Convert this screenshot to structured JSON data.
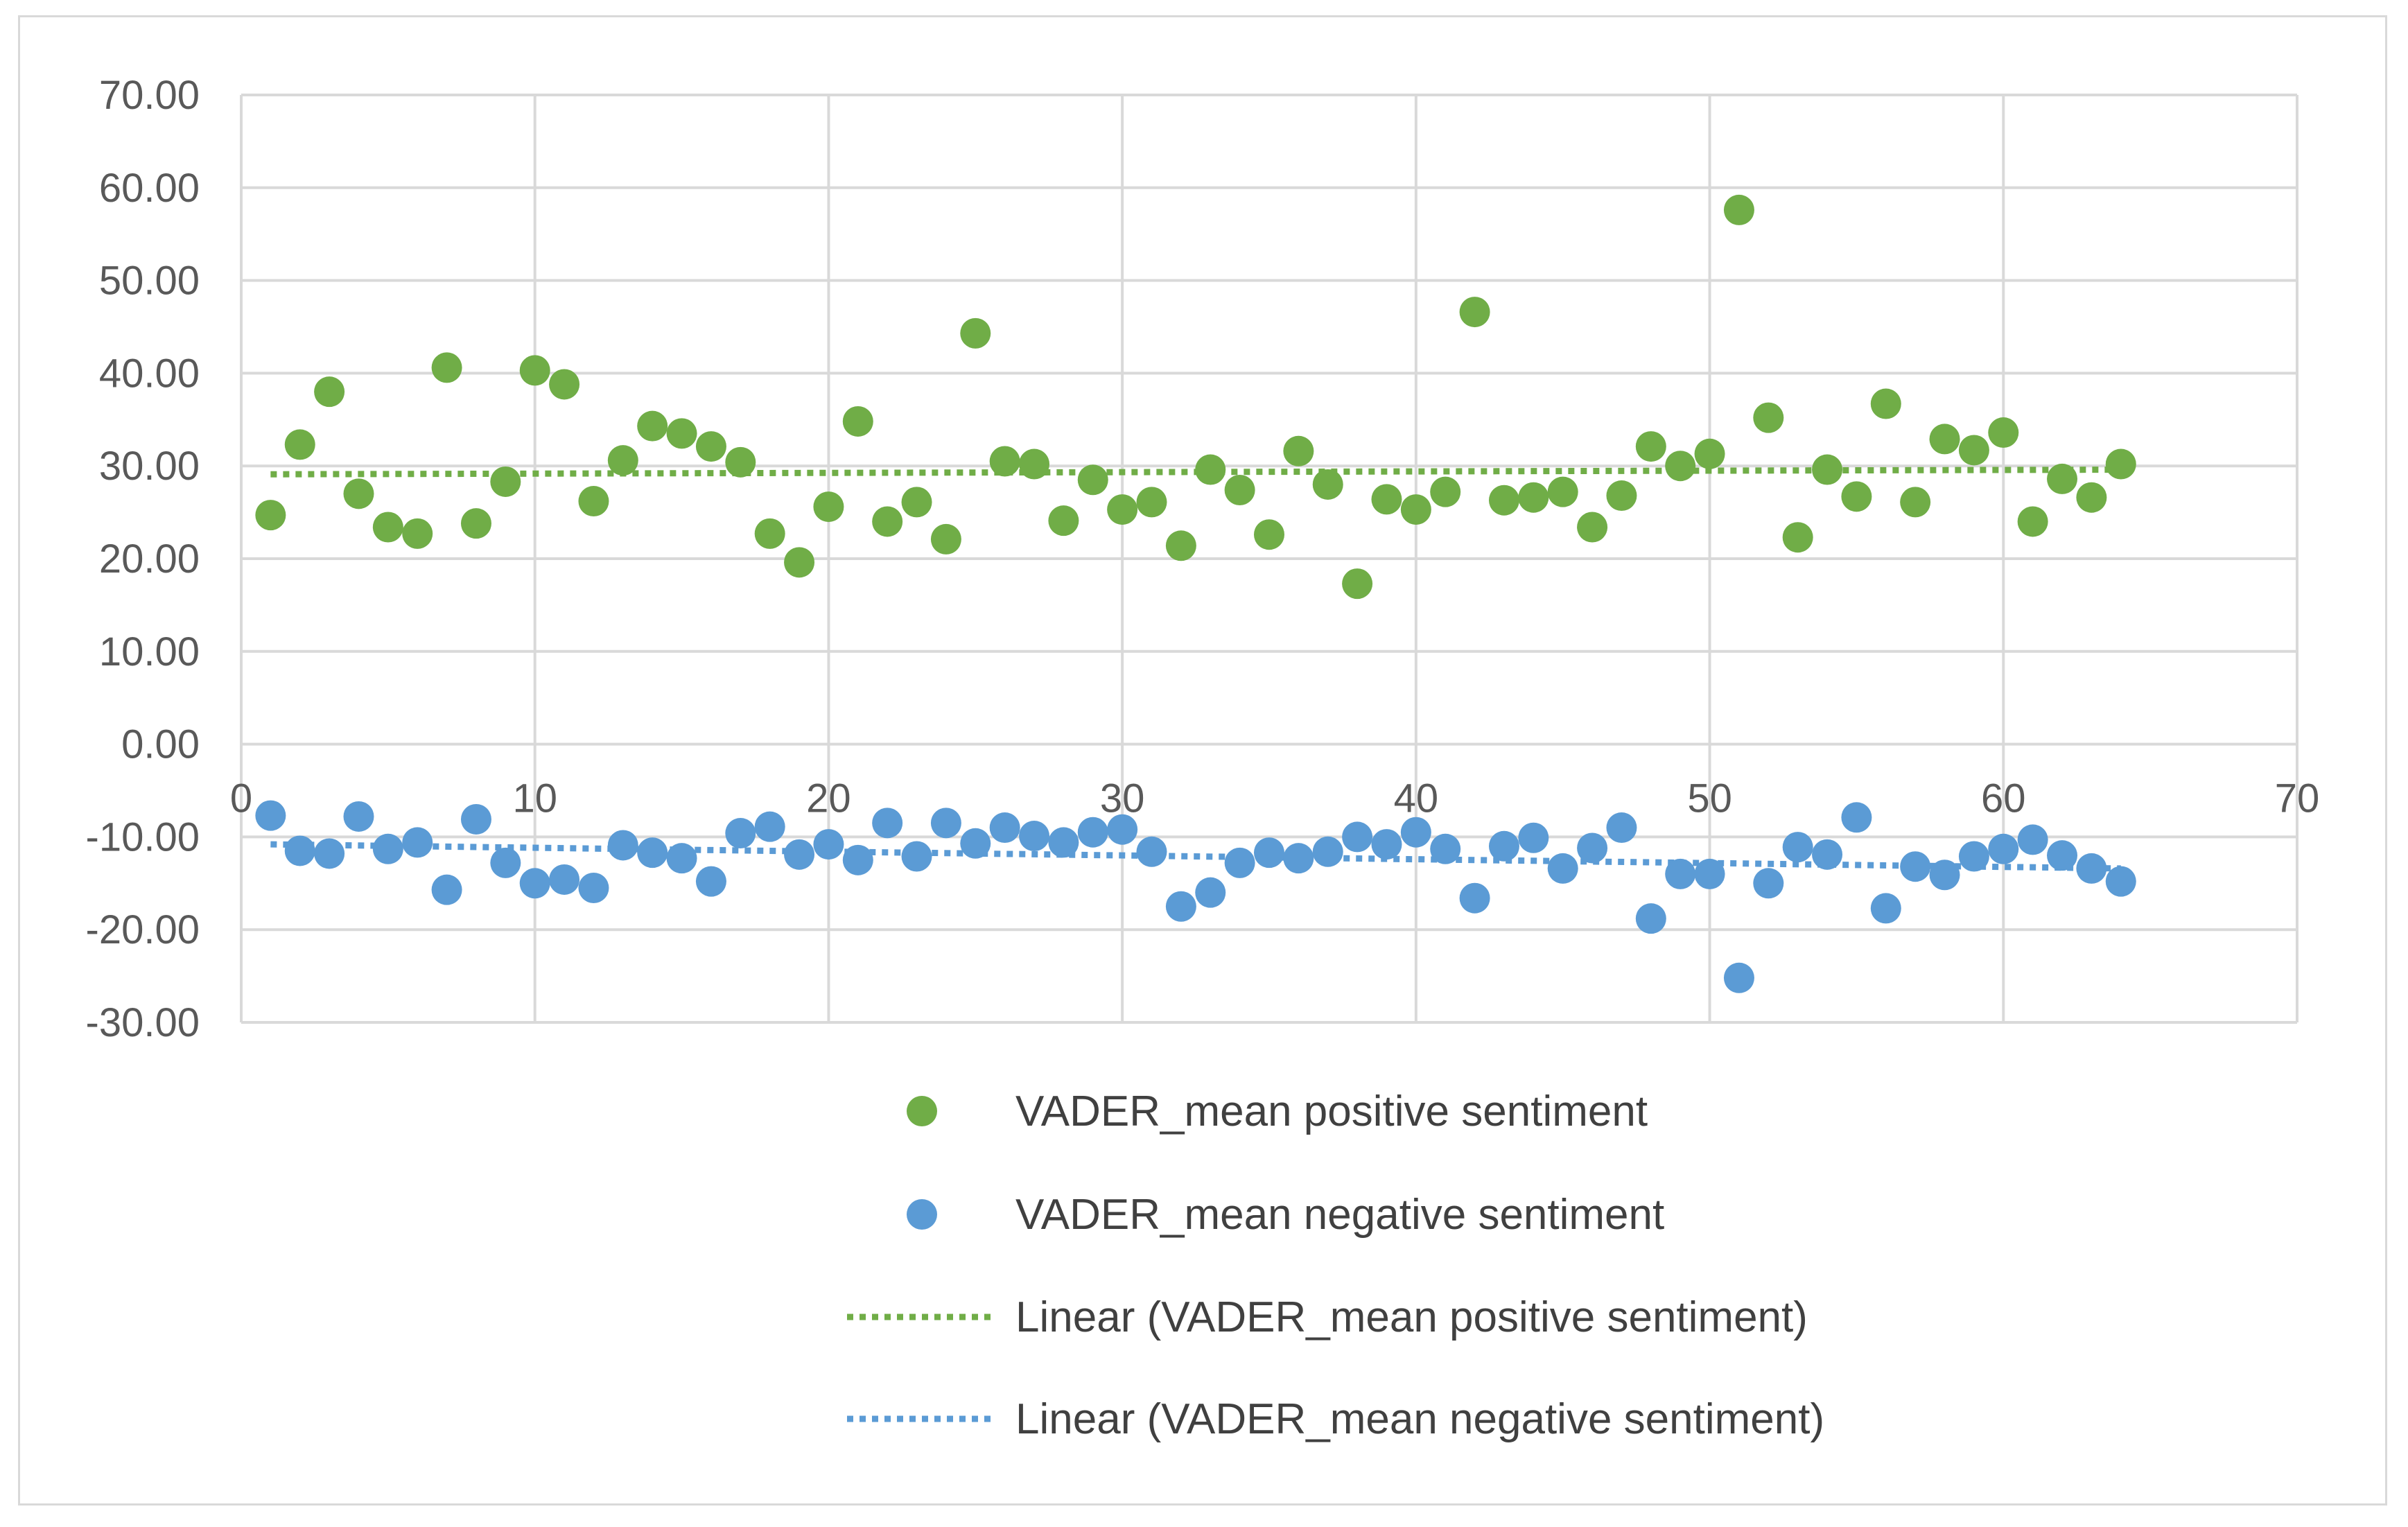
{
  "chart_data": {
    "type": "scatter",
    "title": "",
    "xlabel": "",
    "ylabel": "",
    "xlim": [
      0,
      70
    ],
    "ylim": [
      -30,
      70
    ],
    "x_ticks": [
      0,
      10,
      20,
      30,
      40,
      50,
      60,
      70
    ],
    "y_ticks": [
      -30,
      -20,
      -10,
      0,
      10,
      20,
      30,
      40,
      50,
      60,
      70
    ],
    "x_tick_labels": [
      "0",
      "10",
      "20",
      "30",
      "40",
      "50",
      "60",
      "70"
    ],
    "y_tick_labels": [
      "-30.00",
      "-20.00",
      "-10.00",
      "0.00",
      "10.00",
      "20.00",
      "30.00",
      "40.00",
      "50.00",
      "60.00",
      "70.00"
    ],
    "grid": true,
    "legend_position": "bottom",
    "colors": {
      "positive": "#70ad47",
      "negative": "#5b9bd5",
      "grid": "#d9d9d9"
    },
    "series": [
      {
        "name": "VADER_mean positive sentiment",
        "marker": "circle",
        "color": "#70ad47",
        "x": [
          1,
          2,
          3,
          4,
          5,
          6,
          7,
          8,
          9,
          10,
          11,
          12,
          13,
          14,
          15,
          16,
          17,
          18,
          19,
          20,
          21,
          22,
          23,
          24,
          25,
          26,
          27,
          28,
          29,
          30,
          31,
          32,
          33,
          34,
          35,
          36,
          37,
          38,
          39,
          40,
          41,
          42,
          43,
          44,
          45,
          46,
          47,
          48,
          49,
          50,
          51,
          52,
          53,
          54,
          55,
          56,
          57,
          58,
          59,
          60,
          61,
          62,
          63,
          64
        ],
        "y": [
          24.7,
          32.3,
          38.0,
          27.0,
          23.4,
          22.7,
          40.6,
          23.8,
          28.3,
          40.3,
          38.8,
          26.2,
          30.6,
          34.3,
          33.5,
          32.1,
          30.4,
          22.7,
          19.6,
          25.6,
          34.8,
          24.0,
          26.1,
          22.1,
          44.3,
          30.5,
          30.2,
          24.1,
          28.5,
          25.3,
          26.1,
          21.4,
          29.6,
          27.4,
          22.6,
          31.6,
          28.0,
          17.3,
          26.4,
          25.3,
          27.2,
          46.6,
          26.3,
          26.6,
          27.2,
          23.4,
          26.8,
          32.1,
          30.0,
          31.3,
          57.6,
          35.2,
          22.3,
          29.6,
          26.7,
          36.7,
          26.1,
          32.9,
          31.7,
          33.6,
          24.0,
          28.6,
          26.6,
          30.2
        ]
      },
      {
        "name": "VADER_mean negative sentiment",
        "marker": "circle",
        "color": "#5b9bd5",
        "x": [
          1,
          2,
          3,
          4,
          5,
          6,
          7,
          8,
          9,
          10,
          11,
          12,
          13,
          14,
          15,
          16,
          17,
          18,
          19,
          20,
          21,
          22,
          23,
          24,
          25,
          26,
          27,
          28,
          29,
          30,
          31,
          32,
          33,
          34,
          35,
          36,
          37,
          38,
          39,
          40,
          41,
          42,
          43,
          44,
          45,
          46,
          47,
          48,
          49,
          50,
          51,
          52,
          53,
          54,
          55,
          56,
          57,
          58,
          59,
          60,
          61,
          62,
          63,
          64
        ],
        "y": [
          -7.7,
          -11.5,
          -11.8,
          -7.8,
          -11.3,
          -10.6,
          -15.7,
          -8.1,
          -12.8,
          -15.0,
          -14.6,
          -15.5,
          -10.9,
          -11.7,
          -12.3,
          -14.8,
          -9.6,
          -8.9,
          -11.9,
          -10.8,
          -12.5,
          -8.5,
          -12.1,
          -8.5,
          -10.7,
          -9.0,
          -9.9,
          -10.6,
          -9.5,
          -9.2,
          -11.6,
          -17.5,
          -16.0,
          -12.8,
          -11.7,
          -12.3,
          -11.6,
          -10.0,
          -10.8,
          -9.5,
          -11.3,
          -16.6,
          -11.0,
          -10.1,
          -13.4,
          -11.2,
          -9.0,
          -18.8,
          -14.0,
          -14.0,
          -25.2,
          -15.0,
          -11.1,
          -11.9,
          -7.9,
          -17.7,
          -13.2,
          -14.1,
          -12.1,
          -11.3,
          -10.3,
          -12.0,
          -13.4,
          -14.8
        ]
      },
      {
        "name": "Linear (VADER_mean positive sentiment)",
        "type": "trendline",
        "line_style": "dotted",
        "color": "#70ad47",
        "x": [
          1,
          64
        ],
        "y": [
          29.1,
          29.6
        ]
      },
      {
        "name": "Linear (VADER_mean negative sentiment)",
        "type": "trendline",
        "line_style": "dotted",
        "color": "#5b9bd5",
        "x": [
          1,
          64
        ],
        "y": [
          -10.8,
          -13.4
        ]
      }
    ]
  }
}
